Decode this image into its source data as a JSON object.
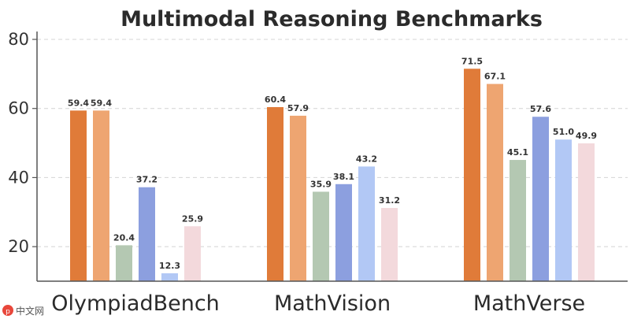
{
  "chart_data": {
    "type": "bar",
    "title": "Multimodal Reasoning Benchmarks",
    "xlabel": "",
    "ylabel": "",
    "categories": [
      "OlympiadBench",
      "MathVision",
      "MathVerse"
    ],
    "ylim": [
      10,
      80
    ],
    "yticks": [
      20,
      40,
      60,
      80
    ],
    "grid": true,
    "series": [
      {
        "color": "#E07B39",
        "values": [
          59.4,
          60.4,
          71.5
        ]
      },
      {
        "color": "#EEA571",
        "values": [
          59.4,
          57.9,
          67.1
        ]
      },
      {
        "color": "#B4C8B2",
        "values": [
          20.4,
          35.9,
          45.1
        ]
      },
      {
        "color": "#8C9FDF",
        "values": [
          37.2,
          38.1,
          57.6
        ]
      },
      {
        "color": "#B2C8F5",
        "values": [
          12.3,
          43.2,
          51.0
        ]
      },
      {
        "color": "#F3D9DC",
        "values": [
          25.9,
          31.2,
          49.9
        ]
      }
    ]
  },
  "watermark": "中文网"
}
